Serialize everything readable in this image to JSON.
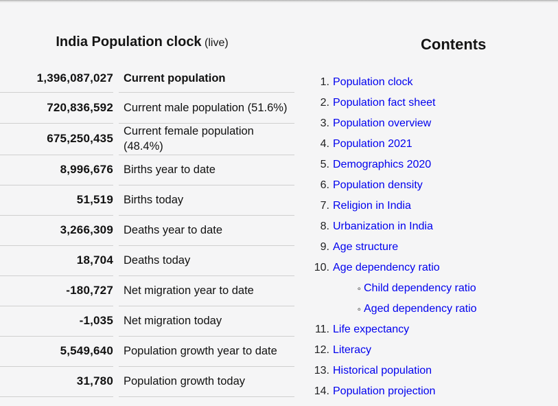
{
  "clock": {
    "title": "India Population clock",
    "title_suffix": "(live)",
    "rows": [
      {
        "value": "1,396,087,027",
        "label": "Current population"
      },
      {
        "value": "720,836,592",
        "label": "Current male population (51.6%)"
      },
      {
        "value": "675,250,435",
        "label": "Current female population (48.4%)"
      },
      {
        "value": "8,996,676",
        "label": "Births year to date"
      },
      {
        "value": "51,519",
        "label": "Births today"
      },
      {
        "value": "3,266,309",
        "label": "Deaths year to date"
      },
      {
        "value": "18,704",
        "label": "Deaths today"
      },
      {
        "value": "-180,727",
        "label": "Net migration year to date"
      },
      {
        "value": "-1,035",
        "label": "Net migration today"
      },
      {
        "value": "5,549,640",
        "label": "Population growth year to date"
      },
      {
        "value": "31,780",
        "label": "Population growth today"
      }
    ]
  },
  "contents": {
    "heading": "Contents",
    "items": [
      {
        "marker": "1.",
        "label": "Population clock"
      },
      {
        "marker": "2.",
        "label": "Population fact sheet"
      },
      {
        "marker": "3.",
        "label": "Population overview"
      },
      {
        "marker": "4.",
        "label": "Population 2021"
      },
      {
        "marker": "5.",
        "label": "Demographics 2020"
      },
      {
        "marker": "6.",
        "label": "Population density"
      },
      {
        "marker": "7.",
        "label": "Religion in India"
      },
      {
        "marker": "8.",
        "label": "Urbanization in India"
      },
      {
        "marker": "9.",
        "label": "Age structure"
      },
      {
        "marker": "10.",
        "label": "Age dependency ratio"
      },
      {
        "marker": "◦",
        "label": "Child dependency ratio"
      },
      {
        "marker": "◦",
        "label": "Aged dependency ratio"
      },
      {
        "marker": "11.",
        "label": "Life expectancy"
      },
      {
        "marker": "12.",
        "label": "Literacy"
      },
      {
        "marker": "13.",
        "label": "Historical population"
      },
      {
        "marker": "14.",
        "label": "Population projection"
      }
    ]
  },
  "colors": {
    "link": "#0000EE",
    "row_border": "#cfcfcf",
    "background": "#f5f5f6"
  }
}
